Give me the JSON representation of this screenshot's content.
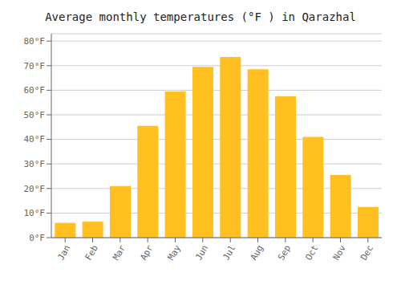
{
  "chart_data": {
    "type": "bar",
    "title": "Average monthly temperatures (°F ) in Qarazhal",
    "categories": [
      "Jan",
      "Feb",
      "Mar",
      "Apr",
      "May",
      "Jun",
      "Jul",
      "Aug",
      "Sep",
      "Oct",
      "Nov",
      "Dec"
    ],
    "values": [
      6.0,
      6.5,
      21.0,
      45.5,
      59.5,
      69.5,
      73.5,
      68.5,
      57.5,
      41.0,
      25.5,
      12.5
    ],
    "color": "#FFC020",
    "ylim": [
      0,
      83
    ],
    "yticks": [
      {
        "value": 0,
        "label": "0°F"
      },
      {
        "value": 10,
        "label": "10°F"
      },
      {
        "value": 20,
        "label": "20°F"
      },
      {
        "value": 30,
        "label": "30°F"
      },
      {
        "value": 40,
        "label": "40°F"
      },
      {
        "value": 50,
        "label": "50°F"
      },
      {
        "value": 60,
        "label": "60°F"
      },
      {
        "value": 70,
        "label": "70°F"
      },
      {
        "value": 80,
        "label": "80°F"
      }
    ],
    "grid": true
  }
}
